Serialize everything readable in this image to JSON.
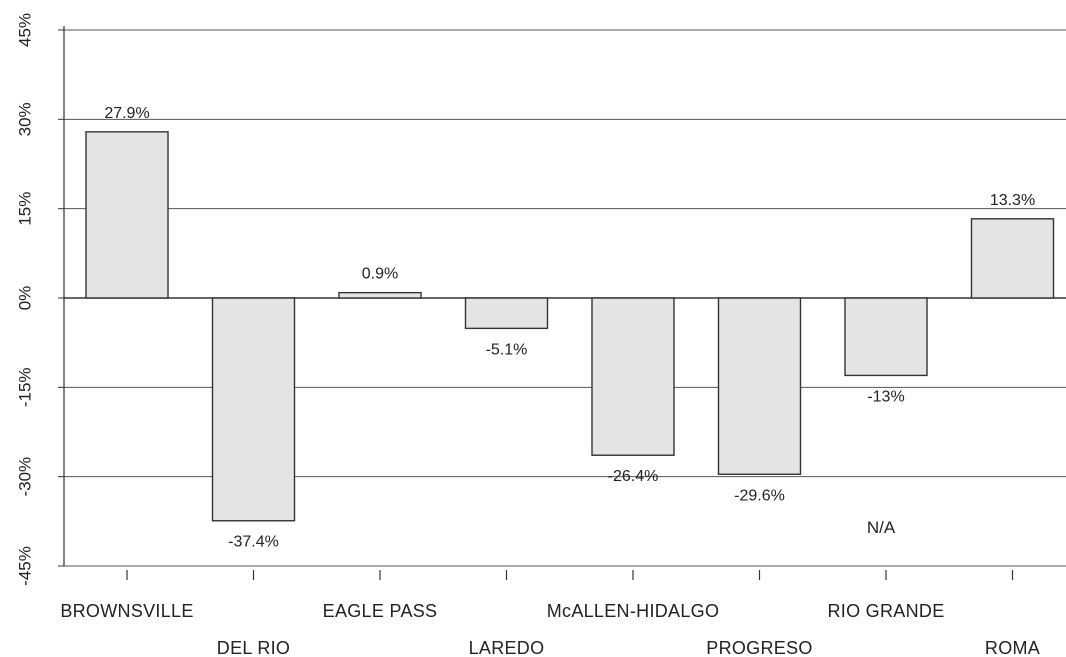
{
  "chart_data": {
    "type": "bar",
    "title": "",
    "xlabel": "",
    "ylabel": "",
    "ylim": [
      -45,
      45
    ],
    "yticks": [
      45,
      30,
      15,
      0,
      -15,
      -30,
      -45
    ],
    "ytick_labels": [
      "45%",
      "30%",
      "15%",
      "0%",
      "-15%",
      "-30%",
      "-45%"
    ],
    "grid": "horizontal",
    "categories": [
      "BROWNSVILLE",
      "DEL RIO",
      "EAGLE PASS",
      "LAREDO",
      "McALLEN-HIDALGO",
      "PROGRESO",
      "RIO GRANDE",
      "ROMA"
    ],
    "values": [
      27.9,
      -37.4,
      0.9,
      -5.1,
      -26.4,
      -29.6,
      -13,
      13.3
    ],
    "value_labels": [
      "27.9%",
      "-37.4%",
      "0.9%",
      "-5.1%",
      "-26.4%",
      "-29.6%",
      "-13%",
      "13.3%"
    ],
    "annotations": [
      {
        "text": "N/A",
        "category": "RIO GRANDE",
        "y": -39.5
      }
    ],
    "colors": {
      "bar_fill": "#e4e4e4",
      "bar_stroke": "#333333",
      "grid": "#555555",
      "axis": "#333333",
      "text": "#222222"
    }
  }
}
